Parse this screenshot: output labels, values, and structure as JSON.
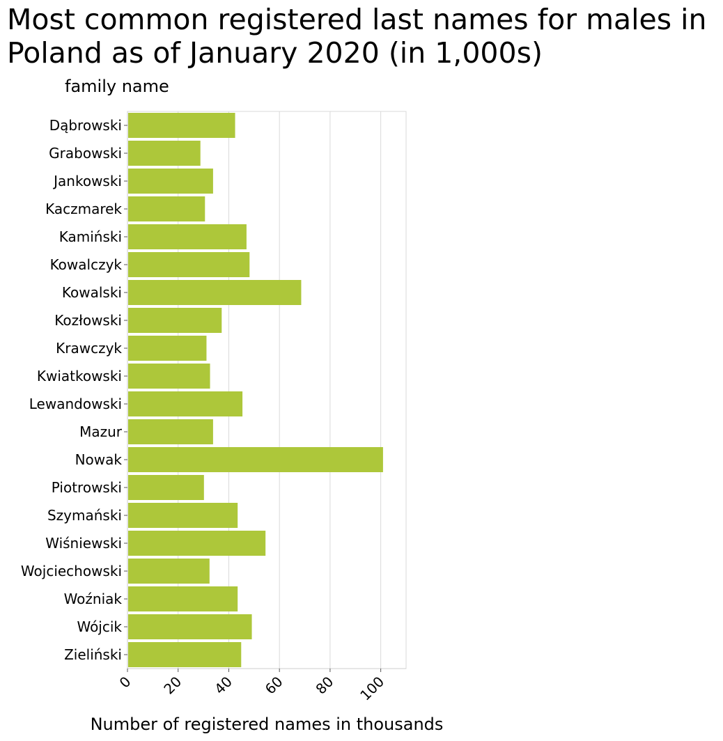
{
  "chart_data": {
    "type": "bar",
    "orientation": "horizontal",
    "title": "Most common registered last names for males in Poland as of January 2020 (in 1,000s)",
    "ylabel": "family name",
    "xlabel": "Number of registered names in thousands",
    "categories": [
      "Dąbrowski",
      "Grabowski",
      "Jankowski",
      "Kaczmarek",
      "Kamiński",
      "Kowalczyk",
      "Kowalski",
      "Kozłowski",
      "Krawczyk",
      "Kwiatkowski",
      "Lewandowski",
      "Mazur",
      "Nowak",
      "Piotrowski",
      "Szymański",
      "Wiśniewski",
      "Wojciechowski",
      "Woźniak",
      "Wójcik",
      "Zieliński"
    ],
    "values": [
      42.5,
      28.8,
      33.8,
      30.6,
      47.0,
      48.2,
      68.6,
      37.2,
      31.2,
      32.6,
      45.4,
      33.8,
      100.9,
      30.2,
      43.5,
      54.5,
      32.4,
      43.5,
      49.1,
      44.9
    ],
    "xticks": [
      "0",
      "20",
      "40",
      "60",
      "80",
      "100"
    ],
    "xlim": [
      0,
      110
    ],
    "grid": "vertical",
    "bar_color": "#adc73a"
  }
}
